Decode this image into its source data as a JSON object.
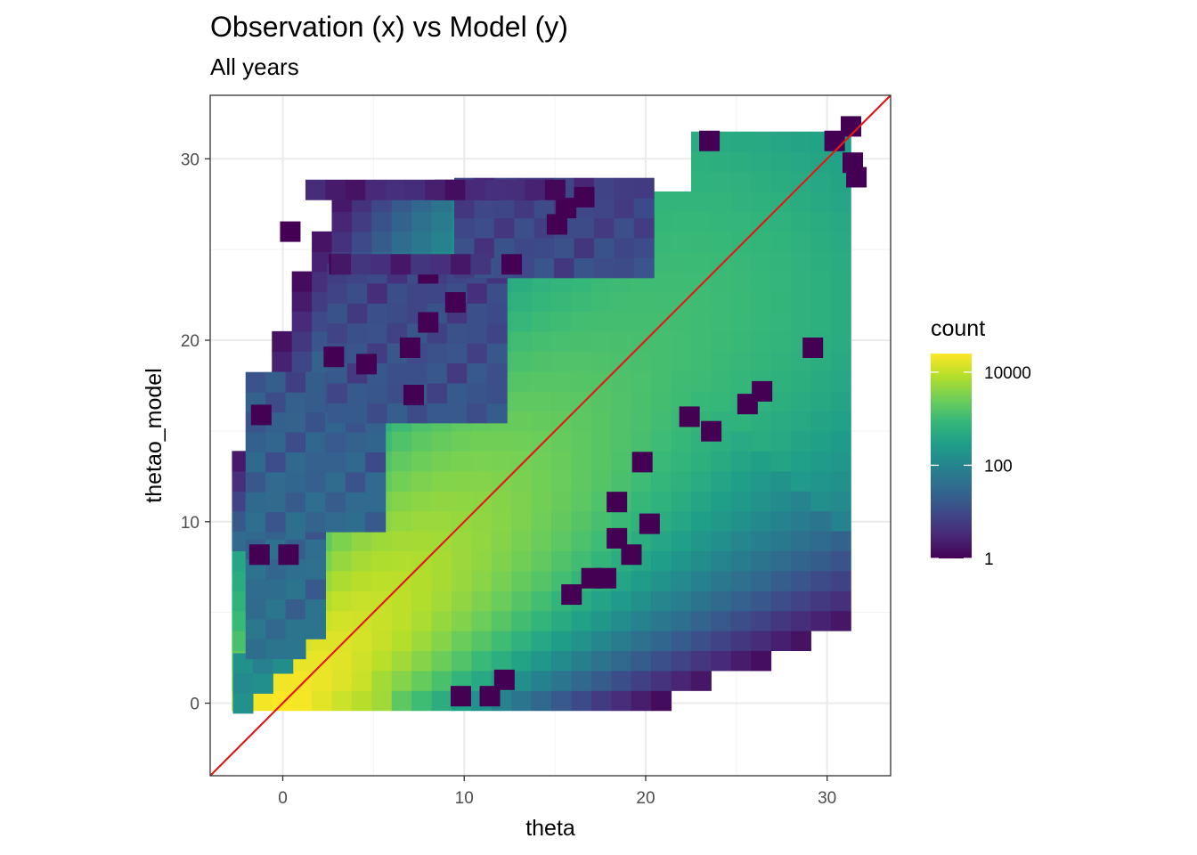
{
  "chart_data": {
    "type": "heatmap",
    "subtype": "2d-binned-counts",
    "title": "Observation (x) vs Model (y)",
    "subtitle": "All years",
    "xlabel": "theta",
    "ylabel": "thetao_model",
    "xlim": [
      -4,
      33.5
    ],
    "ylim": [
      -4,
      33.5
    ],
    "xticks": [
      0,
      10,
      20,
      30
    ],
    "yticks": [
      0,
      10,
      20,
      30
    ],
    "grid": true,
    "reference_line": {
      "slope": 1,
      "intercept": 0,
      "color": "#e31a1c"
    },
    "bin_width": 1.1,
    "color_scale": {
      "name": "viridis",
      "transform": "log10",
      "legend_title": "count",
      "legend_breaks": [
        1,
        100,
        10000
      ],
      "legend_labels": [
        "1",
        "100",
        "10000"
      ],
      "max": 25000,
      "stops": [
        "#440154",
        "#482878",
        "#3e4989",
        "#31688e",
        "#26828e",
        "#1f9e89",
        "#35b779",
        "#6ece58",
        "#b5de2b",
        "#fde725"
      ]
    },
    "bands": [
      {
        "x": [
          -2.2,
          0
        ],
        "y": [
          -2.2,
          2.5
        ],
        "peak": 300
      },
      {
        "x": [
          -1.5,
          2.5
        ],
        "y": [
          3,
          12
        ],
        "peak": 60
      },
      {
        "x": [
          -1.5,
          6
        ],
        "y": [
          10,
          18
        ],
        "peak": 40
      },
      {
        "x": [
          3,
          12
        ],
        "y": [
          16,
          24
        ],
        "peak": 20
      },
      {
        "x": [
          10,
          20
        ],
        "y": [
          24,
          29
        ],
        "peak": 15
      }
    ],
    "isolated_points": [
      [
        0.4,
        26.0
      ],
      [
        -1.2,
        15.9
      ],
      [
        -1.3,
        8.2
      ],
      [
        0.3,
        8.2
      ],
      [
        8.0,
        23.7
      ],
      [
        7.0,
        19.6
      ],
      [
        7.2,
        17.0
      ],
      [
        9.8,
        0.4
      ],
      [
        11.4,
        0.4
      ],
      [
        12.2,
        1.3
      ],
      [
        18.4,
        11.1
      ],
      [
        20.2,
        9.9
      ],
      [
        18.4,
        9.1
      ],
      [
        19.2,
        8.2
      ],
      [
        30.4,
        31.0
      ],
      [
        31.3,
        31.8
      ],
      [
        31.4,
        29.8
      ],
      [
        31.6,
        29.0
      ],
      [
        29.2,
        19.6
      ],
      [
        25.6,
        16.5
      ],
      [
        26.4,
        17.2
      ],
      [
        22.4,
        15.8
      ],
      [
        23.6,
        15.0
      ],
      [
        23.5,
        31.0
      ],
      [
        15.6,
        27.3
      ],
      [
        15.1,
        26.4
      ],
      [
        8.9,
        28.3
      ],
      [
        11.4,
        28.3
      ],
      [
        13.5,
        28.3
      ],
      [
        16.6,
        27.9
      ],
      [
        3.1,
        24.2
      ],
      [
        19.8,
        13.3
      ],
      [
        17.0,
        6.9
      ],
      [
        15.9,
        6.0
      ],
      [
        17.8,
        6.9
      ],
      [
        2.8,
        19.1
      ],
      [
        4.6,
        18.7
      ],
      [
        8.0,
        21.0
      ],
      [
        12.6,
        24.2
      ],
      [
        9.5,
        22.1
      ]
    ]
  }
}
